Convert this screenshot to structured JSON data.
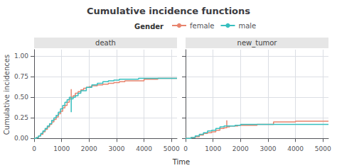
{
  "chart_data": {
    "type": "step",
    "title": "Cumulative incidence functions",
    "xlabel": "Time",
    "ylabel": "Cumulative incidences",
    "legend_title": "Gender",
    "grid": true,
    "xlim": [
      0,
      5200
    ],
    "xticks": [
      0,
      1000,
      2000,
      3000,
      4000,
      5000
    ],
    "ylim": [
      -0.015,
      1.08
    ],
    "yticks": [
      {
        "value": 0.0,
        "label": "0.00"
      },
      {
        "value": 0.25,
        "label": "0.25"
      },
      {
        "value": 0.5,
        "label": "0.50"
      },
      {
        "value": 0.75,
        "label": "0.75"
      },
      {
        "value": 1.0,
        "label": "1.00"
      }
    ],
    "panels": [
      {
        "title": "death",
        "series": [
          {
            "name": "female",
            "color": "#E8846E",
            "x": [
              0,
              80,
              160,
              240,
              320,
              400,
              480,
              560,
              640,
              720,
              800,
              880,
              960,
              1040,
              1120,
              1200,
              1280,
              1350,
              1350,
              1420,
              1500,
              1600,
              1700,
              1800,
              1900,
              2000,
              2100,
              2300,
              2500,
              2700,
              2900,
              3100,
              3300,
              3600,
              4000,
              4500,
              5000,
              5200
            ],
            "values": [
              0.0,
              0.01,
              0.03,
              0.05,
              0.08,
              0.11,
              0.14,
              0.17,
              0.2,
              0.23,
              0.26,
              0.3,
              0.33,
              0.37,
              0.4,
              0.44,
              0.48,
              0.6,
              0.5,
              0.52,
              0.55,
              0.57,
              0.59,
              0.61,
              0.62,
              0.63,
              0.64,
              0.65,
              0.66,
              0.67,
              0.68,
              0.69,
              0.7,
              0.7,
              0.72,
              0.73,
              0.73,
              0.73
            ]
          },
          {
            "name": "male",
            "color": "#37BFBF",
            "x": [
              0,
              80,
              160,
              240,
              320,
              400,
              480,
              560,
              640,
              720,
              800,
              880,
              960,
              1040,
              1120,
              1200,
              1280,
              1350,
              1350,
              1420,
              1500,
              1600,
              1700,
              1900,
              2100,
              2300,
              2500,
              2700,
              2900,
              3100,
              3400,
              3800,
              4200,
              5000,
              5200
            ],
            "values": [
              0.0,
              0.01,
              0.03,
              0.06,
              0.09,
              0.12,
              0.15,
              0.18,
              0.22,
              0.25,
              0.28,
              0.32,
              0.36,
              0.4,
              0.44,
              0.47,
              0.5,
              0.32,
              0.48,
              0.5,
              0.52,
              0.55,
              0.58,
              0.62,
              0.65,
              0.67,
              0.69,
              0.7,
              0.71,
              0.72,
              0.72,
              0.73,
              0.73,
              0.73,
              0.73
            ]
          }
        ]
      },
      {
        "title": "new_tumor",
        "tick_labels": "x",
        "series": [
          {
            "name": "female",
            "color": "#E8846E",
            "x": [
              0,
              200,
              350,
              500,
              650,
              800,
              950,
              1100,
              1250,
              1400,
              1500,
              1500,
              1600,
              1700,
              1900,
              2200,
              2600,
              3100,
              3200,
              4000,
              5000,
              5200
            ],
            "values": [
              0.0,
              0.01,
              0.02,
              0.04,
              0.06,
              0.07,
              0.08,
              0.1,
              0.12,
              0.13,
              0.22,
              0.14,
              0.15,
              0.15,
              0.16,
              0.16,
              0.17,
              0.17,
              0.2,
              0.21,
              0.21,
              0.21
            ]
          },
          {
            "name": "male",
            "color": "#37BFBF",
            "x": [
              0,
              200,
              350,
              500,
              650,
              800,
              950,
              1100,
              1250,
              1400,
              1600,
              1800,
              2000,
              2400,
              3000,
              4000,
              5000,
              5200
            ],
            "values": [
              0.0,
              0.01,
              0.03,
              0.05,
              0.07,
              0.09,
              0.1,
              0.12,
              0.14,
              0.15,
              0.15,
              0.16,
              0.17,
              0.17,
              0.17,
              0.17,
              0.17,
              0.17
            ]
          }
        ]
      }
    ]
  }
}
